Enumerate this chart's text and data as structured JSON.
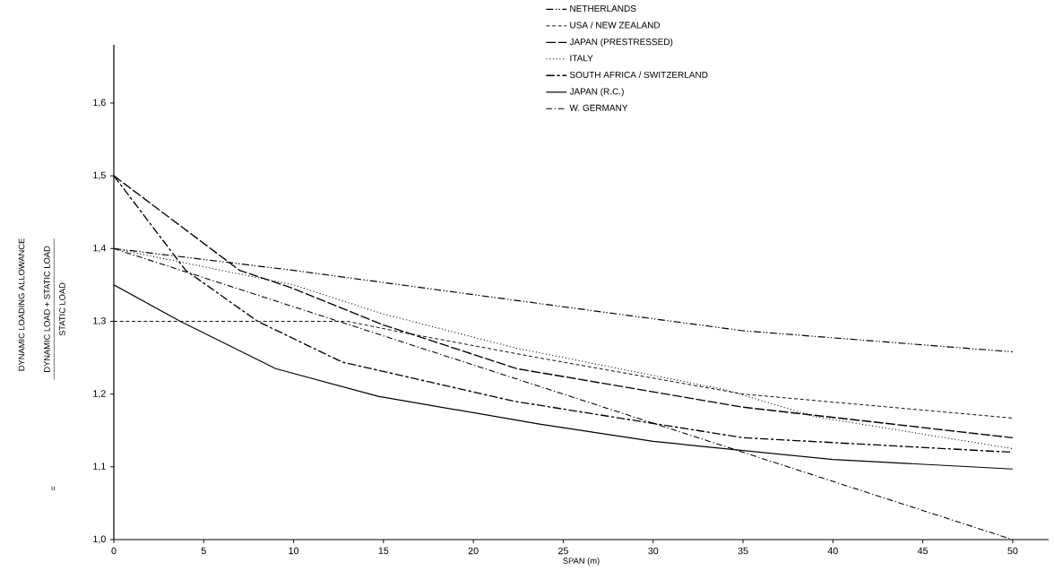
{
  "chart_data": {
    "type": "line",
    "xlabel": "SPAN (m)",
    "annotations": [
      "DYNAMIC LOAD + STATIC LOAD",
      "STATIC LOAD",
      "=",
      "DYNAMIC LOADING ALLOWANCE"
    ],
    "xlim": [
      0,
      52
    ],
    "ylim": [
      1.0,
      1.68
    ],
    "xticks": [
      0,
      5,
      10,
      15,
      20,
      25,
      30,
      35,
      40,
      45,
      50
    ],
    "yticks": [
      {
        "value": 1.0,
        "label": "1,0"
      },
      {
        "value": 1.1,
        "label": "1,1"
      },
      {
        "value": 1.2,
        "label": "1,2"
      },
      {
        "value": 1.3,
        "label": "1,3"
      },
      {
        "value": 1.4,
        "label": "1,4"
      },
      {
        "value": 1.5,
        "label": "1,5"
      },
      {
        "value": 1.6,
        "label": "1,6"
      }
    ],
    "legend": "top",
    "grid": false,
    "series": [
      {
        "name": "NETHERLANDS",
        "color": "#000000",
        "line_style": "dashdotdot",
        "x": [
          0,
          10,
          25,
          35,
          50
        ],
        "values": [
          1.4,
          1.37,
          1.32,
          1.287,
          1.258
        ]
      },
      {
        "name": "USA / NEW ZEALAND",
        "color": "#000000",
        "line_style": "dashed",
        "x": [
          0,
          13,
          16,
          23.6,
          35,
          50
        ],
        "values": [
          1.3,
          1.3,
          1.285,
          1.25,
          1.2,
          1.167
        ]
      },
      {
        "name": "JAPAN (PRESTRESSED)",
        "color": "#000000",
        "line_style": "longdash",
        "x": [
          0,
          7,
          10,
          15,
          22.4,
          35,
          50
        ],
        "values": [
          1.5,
          1.37,
          1.345,
          1.295,
          1.235,
          1.182,
          1.14
        ]
      },
      {
        "name": "ITALY",
        "color": "#000000",
        "line_style": "dotted",
        "x": [
          0,
          10,
          15,
          22.4,
          34,
          39,
          50
        ],
        "values": [
          1.4,
          1.35,
          1.31,
          1.263,
          1.206,
          1.169,
          1.125
        ]
      },
      {
        "name": "SOUTH AFRICA / SWITZERLAND",
        "color": "#000000",
        "line_style": "longdashdot",
        "x": [
          0,
          4,
          8,
          12.7,
          22.3,
          35,
          50
        ],
        "values": [
          1.5,
          1.37,
          1.3,
          1.244,
          1.19,
          1.14,
          1.12
        ]
      },
      {
        "name": "JAPAN (R.C.)",
        "color": "#000000",
        "line_style": "solid",
        "x": [
          0,
          3.7,
          9,
          14.7,
          23.6,
          30,
          40,
          50
        ],
        "values": [
          1.35,
          1.3,
          1.235,
          1.197,
          1.159,
          1.135,
          1.11,
          1.097
        ]
      },
      {
        "name": "W. GERMANY",
        "color": "#000000",
        "line_style": "dashdot",
        "x": [
          0,
          50
        ],
        "values": [
          1.4,
          1.0
        ]
      }
    ]
  }
}
